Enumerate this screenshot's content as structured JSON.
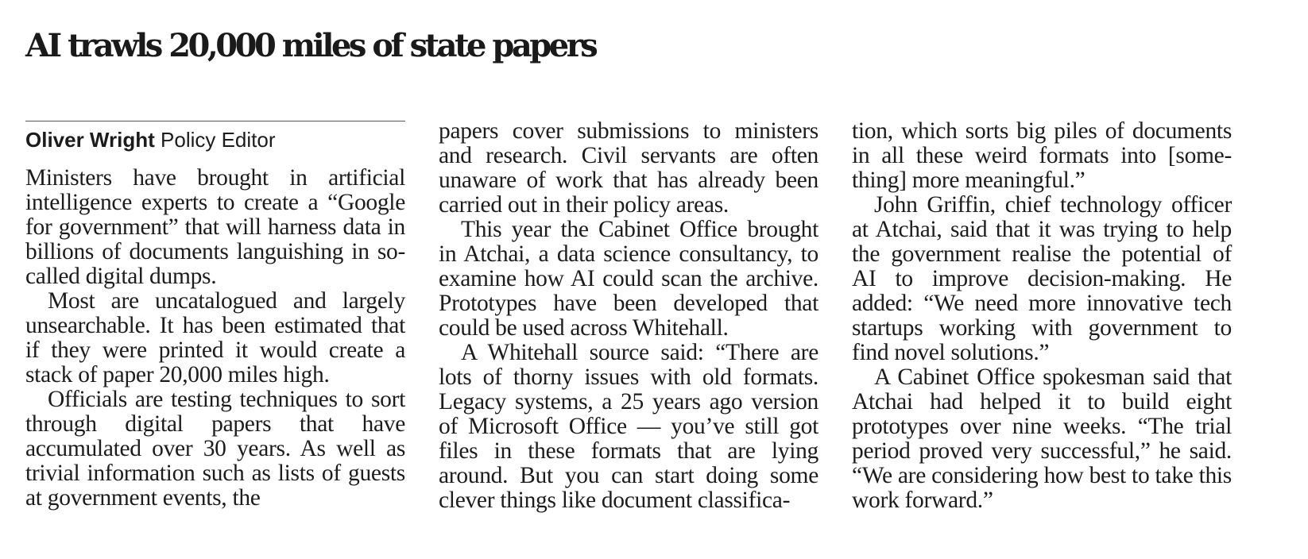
{
  "headline": "AI trawls 20,000 miles of state papers",
  "byline": {
    "author": "Oliver Wright",
    "role": "Policy Editor"
  },
  "columns": [
    {
      "paragraphs": [
        "Ministers have brought in artificial intelligence experts to create a “Google for government” that will harness data in billions of documents languishing in so-called digital dumps.",
        "Most are uncatalogued and largely unsearchable. It has been estimated that if they were printed it would create a stack of paper 20,000 miles high.",
        "Officials are testing techniques to sort through digital papers that have accumulated over 30 years. As well as trivial information such as lists of guests at government events, the"
      ]
    },
    {
      "paragraphs": [
        "papers cover submissions to ministers and research. Civil servants are often unaware of work that has already been carried out in their policy areas.",
        "This year the Cabinet Office brought in Atchai, a data science consultancy, to examine how AI could scan the archive. Prototypes have been developed that could be used across Whitehall.",
        "A Whitehall source said: “There are lots of thorny issues with old formats. Legacy systems, a 25 years ago version of Microsoft Office — you’ve still got files in these formats that are lying around. But you can start doing some clever things like document classifica-"
      ]
    },
    {
      "paragraphs": [
        "tion, which sorts big piles of documents in all these weird formats into [some-thing] more meaningful.”",
        "John Griffin, chief technology officer at Atchai, said that it was trying to help the government realise the potential of AI to improve decision-making. He added: “We need more innovative tech startups working with government to find novel solutions.”",
        "A Cabinet Office spokesman said that Atchai had helped it to build eight prototypes over nine weeks. “The trial period proved very successful,” he said. “We are considering how best to take this work forward.”"
      ]
    }
  ]
}
